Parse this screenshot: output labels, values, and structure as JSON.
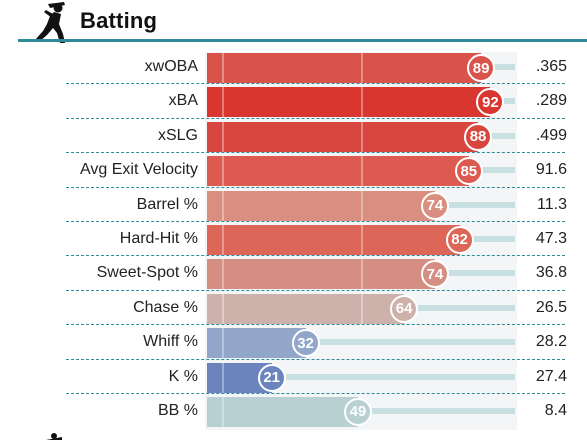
{
  "section": {
    "title": "Batting",
    "icon": "batter-icon"
  },
  "rows": [
    {
      "label": "xwOBA",
      "percentile": 89,
      "value": ".365",
      "color": "#d9534a"
    },
    {
      "label": "xBA",
      "percentile": 92,
      "value": ".289",
      "color": "#d9362f"
    },
    {
      "label": "xSLG",
      "percentile": 88,
      "value": ".499",
      "color": "#d8473f"
    },
    {
      "label": "Avg Exit Velocity",
      "percentile": 85,
      "value": "91.6",
      "color": "#dc5a4f"
    },
    {
      "label": "Barrel %",
      "percentile": 74,
      "value": "11.3",
      "color": "#d98e80"
    },
    {
      "label": "Hard-Hit %",
      "percentile": 82,
      "value": "47.3",
      "color": "#dc6657"
    },
    {
      "label": "Sweet-Spot %",
      "percentile": 74,
      "value": "36.8",
      "color": "#d48e82"
    },
    {
      "label": "Chase %",
      "percentile": 64,
      "value": "26.5",
      "color": "#cdb2ac"
    },
    {
      "label": "Whiff %",
      "percentile": 32,
      "value": "28.2",
      "color": "#91a6c9"
    },
    {
      "label": "K %",
      "percentile": 21,
      "value": "27.4",
      "color": "#6b84bd"
    },
    {
      "label": "BB %",
      "percentile": 49,
      "value": "8.4",
      "color": "#b9d0d3"
    }
  ]
}
